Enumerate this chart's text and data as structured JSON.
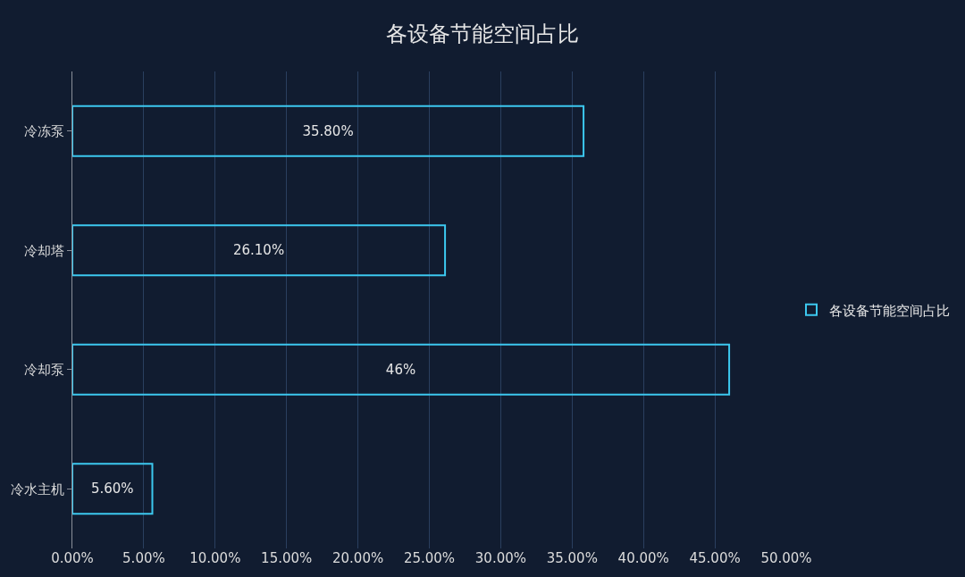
{
  "chart_data": {
    "type": "bar",
    "orientation": "horizontal",
    "title": "各设备节能空间占比",
    "categories": [
      "冷冻泵",
      "冷却塔",
      "冷却泵",
      "冷水主机"
    ],
    "series": [
      {
        "name": "各设备节能空间占比",
        "color": "#3cc8ef",
        "values": [
          35.8,
          26.1,
          46,
          5.6
        ],
        "value_labels": [
          "35.80%",
          "26.10%",
          "46%",
          "5.60%"
        ]
      }
    ],
    "xlim": [
      0,
      50
    ],
    "xticks": [
      {
        "value": 0,
        "label": "0.00%"
      },
      {
        "value": 5,
        "label": "5.00%"
      },
      {
        "value": 10,
        "label": "10.00%"
      },
      {
        "value": 15,
        "label": "15.00%"
      },
      {
        "value": 20,
        "label": "20.00%"
      },
      {
        "value": 25,
        "label": "25.00%"
      },
      {
        "value": 30,
        "label": "30.00%"
      },
      {
        "value": 35,
        "label": "35.00%"
      },
      {
        "value": 40,
        "label": "40.00%"
      },
      {
        "value": 45,
        "label": "45.00%"
      },
      {
        "value": 50,
        "label": "50.00%"
      }
    ],
    "grid": "x",
    "legend": "right"
  }
}
